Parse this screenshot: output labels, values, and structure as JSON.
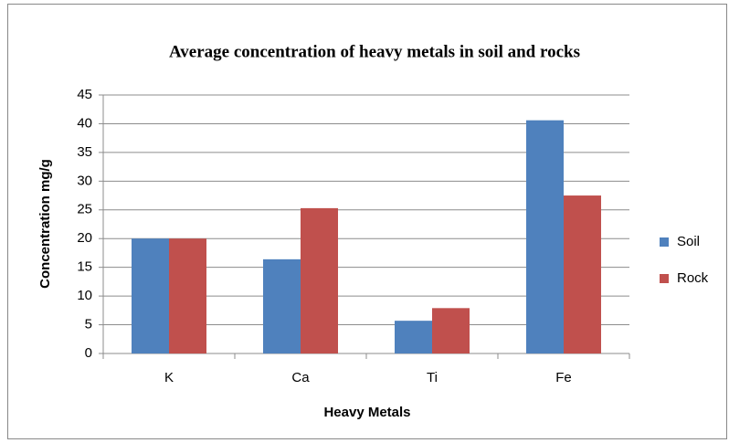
{
  "chart_data": {
    "type": "bar",
    "title": "Average concentration of heavy metals in soil and rocks",
    "x_label": "Heavy Metals",
    "y_label": "Concentration mg/g",
    "categories": [
      "K",
      "Ca",
      "Ti",
      "Fe"
    ],
    "series": [
      {
        "name": "Soil",
        "color": "#4f81bd",
        "values": [
          20,
          16.4,
          5.7,
          40.6
        ]
      },
      {
        "name": "Rock",
        "color": "#c0504d",
        "values": [
          20,
          25.3,
          7.9,
          27.5
        ]
      }
    ],
    "ylim": [
      0,
      45
    ],
    "yticks": [
      0,
      5,
      10,
      15,
      20,
      25,
      30,
      35,
      40,
      45
    ],
    "grid": true,
    "legend": "right"
  }
}
